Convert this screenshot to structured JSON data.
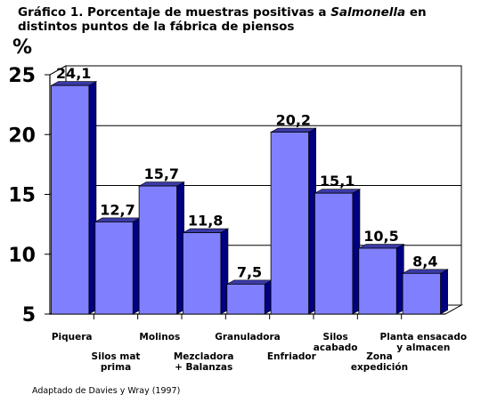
{
  "title": {
    "prefix": "Gráfico 1. Porcentaje de muestras positivas a ",
    "italic": "Salmonella",
    "suffix": " en distintos puntos de la fábrica de piensos"
  },
  "source_note": "Adaptado de Davies y Wray (1997)",
  "chart_data": {
    "type": "bar",
    "style": "3d-column",
    "ylabel": "%",
    "xlabel": "",
    "ylim": [
      5,
      25
    ],
    "yticks": [
      "5",
      "10",
      "15",
      "20",
      "25"
    ],
    "grid": true,
    "legend": "none",
    "bar_color": "#8080ff",
    "categories": [
      [
        "Piquera"
      ],
      [
        "Silos mat",
        "prima"
      ],
      [
        "Molinos"
      ],
      [
        "Mezcladora",
        "+ Balanzas"
      ],
      [
        "Granuladora"
      ],
      [
        "Enfriador"
      ],
      [
        "Silos",
        "acabado"
      ],
      [
        "Zona",
        "expedición"
      ],
      [
        "Planta ensacado",
        "y almacen"
      ]
    ],
    "values": [
      24.1,
      12.7,
      15.7,
      11.8,
      7.5,
      20.2,
      15.1,
      10.5,
      8.4
    ],
    "data_labels": [
      "24,1",
      "12,7",
      "15,7",
      "11,8",
      "7,5",
      "20,2",
      "15,1",
      "10,5",
      "8,4"
    ]
  }
}
